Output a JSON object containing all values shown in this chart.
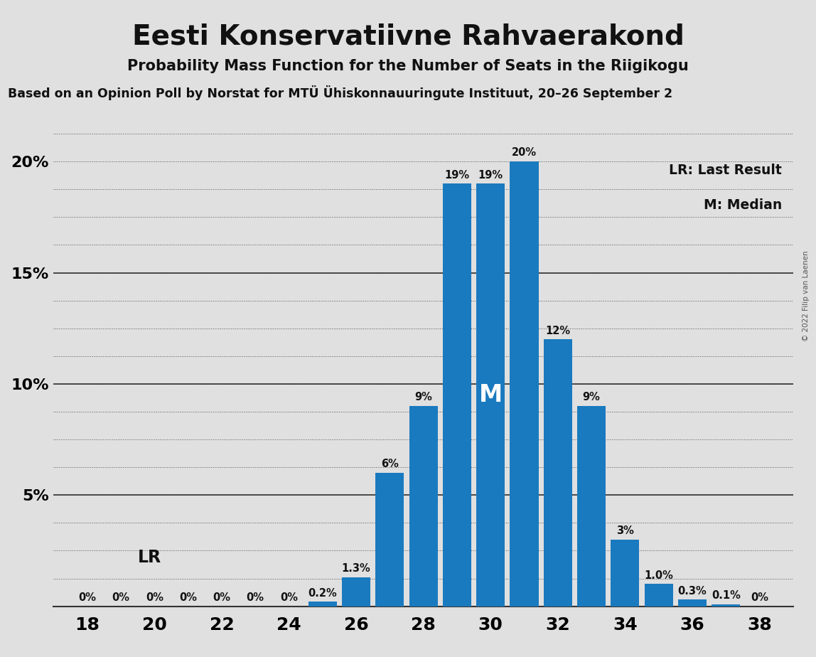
{
  "title": "Eesti Konservatiivne Rahvaerakond",
  "subtitle": "Probability Mass Function for the Number of Seats in the Riigikogu",
  "subtitle2": "Based on an Opinion Poll by Norstat for MTÜ Ühiskonnauuringute Instituut, 20–26 September 2",
  "copyright": "© 2022 Filip van Laenen",
  "seats": [
    18,
    19,
    20,
    21,
    22,
    23,
    24,
    25,
    26,
    27,
    28,
    29,
    30,
    31,
    32,
    33,
    34,
    35,
    36,
    37,
    38
  ],
  "probabilities": [
    0.0,
    0.0,
    0.0,
    0.0,
    0.0,
    0.0,
    0.0,
    0.2,
    1.3,
    6.0,
    9.0,
    19.0,
    19.0,
    20.0,
    12.0,
    9.0,
    3.0,
    1.0,
    0.3,
    0.1,
    0.0
  ],
  "bar_color": "#1a7abf",
  "background_color": "#e0e0e0",
  "median_seat": 30,
  "lr_seat": 19,
  "legend_lr": "LR: Last Result",
  "legend_m": "M: Median",
  "lr_label": "LR",
  "m_label": "M",
  "ytick_values": [
    0,
    5,
    10,
    15,
    20
  ],
  "xlim": [
    17.0,
    39.0
  ],
  "ylim": [
    0,
    22.5
  ]
}
